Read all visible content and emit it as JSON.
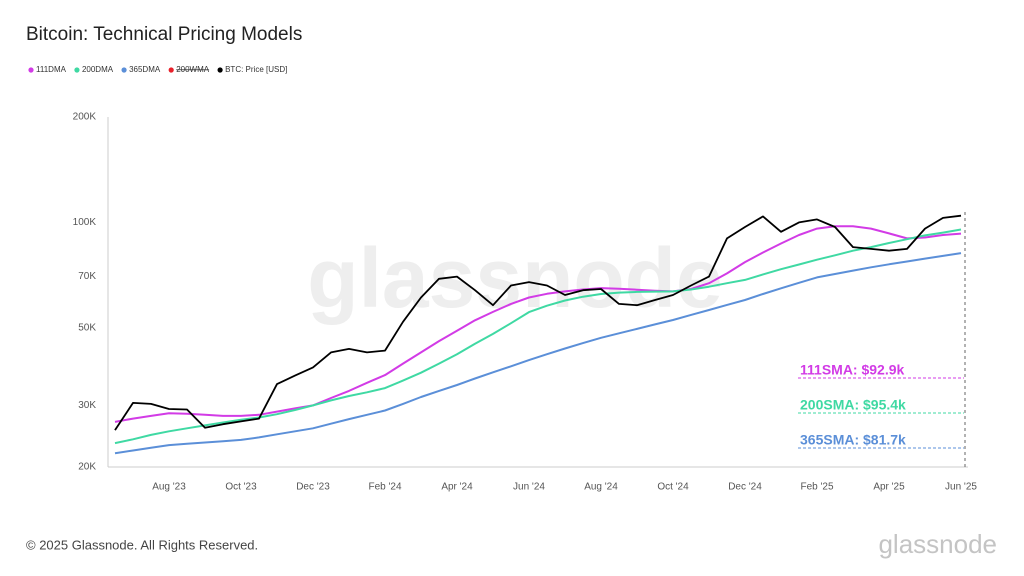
{
  "chart_data": {
    "type": "line",
    "title": "Bitcoin: Technical Pricing Models",
    "log_scale": true,
    "ylim": [
      20,
      200
    ],
    "yticks": [
      {
        "value": 20,
        "label": "20K"
      },
      {
        "value": 30,
        "label": "30K"
      },
      {
        "value": 50,
        "label": "50K"
      },
      {
        "value": 70,
        "label": "70K"
      },
      {
        "value": 100,
        "label": "100K"
      },
      {
        "value": 200,
        "label": "200K"
      }
    ],
    "categories": [
      null,
      null,
      null,
      "Aug '23",
      null,
      null,
      null,
      "Oct '23",
      null,
      null,
      null,
      "Dec '23",
      null,
      null,
      null,
      "Feb '24",
      null,
      null,
      null,
      "Apr '24",
      null,
      null,
      null,
      "Jun '24",
      null,
      null,
      null,
      "Aug '24",
      null,
      null,
      null,
      "Oct '24",
      null,
      null,
      null,
      "Dec '24",
      null,
      null,
      null,
      "Feb '25",
      null,
      null,
      null,
      "Apr '25",
      null,
      null,
      null,
      "Jun '25"
    ],
    "series": [
      {
        "name": "111DMA",
        "color": "#d23be6",
        "values": [
          26.9,
          27.5,
          28.0,
          28.5,
          28.4,
          28.2,
          28.0,
          28.0,
          28.2,
          28.8,
          29.4,
          30.0,
          31.5,
          33,
          34.8,
          36.6,
          39.5,
          42.5,
          45.8,
          49,
          52.5,
          55.5,
          58.5,
          61,
          62.5,
          63.5,
          64.3,
          64.9,
          64.6,
          64.2,
          63.8,
          63.5,
          64.5,
          67,
          71.5,
          77,
          82,
          87,
          92,
          96,
          97.5,
          97.5,
          96,
          93,
          90,
          90.5,
          92,
          92.9
        ]
      },
      {
        "name": "200DMA",
        "color": "#3fd9a3",
        "values": [
          23.4,
          24,
          24.7,
          25.3,
          25.8,
          26.3,
          26.8,
          27.3,
          27.7,
          28.3,
          29.1,
          30,
          31,
          31.9,
          32.7,
          33.6,
          35.3,
          37.2,
          39.5,
          42,
          45,
          48,
          51.5,
          55.4,
          57.8,
          59.8,
          61.3,
          62.4,
          63,
          63.3,
          63.4,
          63.5,
          64.3,
          65.5,
          67,
          68.5,
          71,
          73.5,
          75.8,
          78.2,
          80.5,
          83,
          85,
          87.3,
          89.5,
          91.8,
          93.5,
          95.4
        ]
      },
      {
        "name": "365DMA",
        "color": "#5b8fd8",
        "values": [
          21.9,
          22.3,
          22.7,
          23.1,
          23.3,
          23.5,
          23.7,
          23.9,
          24.3,
          24.8,
          25.3,
          25.8,
          26.6,
          27.4,
          28.2,
          29.0,
          30.3,
          31.7,
          33,
          34.3,
          35.8,
          37.3,
          38.8,
          40.4,
          42,
          43.6,
          45.2,
          46.8,
          48.2,
          49.6,
          51.1,
          52.6,
          54.4,
          56.2,
          58.1,
          60,
          62.4,
          64.8,
          67.2,
          69.6,
          71.2,
          72.8,
          74.4,
          75.9,
          77.3,
          78.8,
          80.2,
          81.7
        ]
      },
      {
        "name": "200WMA",
        "color": "#e8202a",
        "visible": false
      },
      {
        "name": "BTC: Price [USD]",
        "color": "#000000",
        "values": [
          25.5,
          30.5,
          30.3,
          29.3,
          29.2,
          25.9,
          26.5,
          27.0,
          27.5,
          34.5,
          36.5,
          38.5,
          42.5,
          43.5,
          42.5,
          43,
          52,
          61,
          69,
          70,
          64,
          58,
          66,
          67.5,
          66,
          62,
          64,
          64.5,
          58.5,
          58,
          60,
          62,
          66,
          70,
          90,
          97,
          104,
          94,
          100,
          102,
          97,
          85,
          84,
          83,
          84,
          96,
          103,
          104.5
        ]
      }
    ],
    "annotations": [
      {
        "text": "111SMA: $92.9k",
        "color": "#d23be6"
      },
      {
        "text": "200SMA: $95.4k",
        "color": "#3fd9a3"
      },
      {
        "text": "365SMA: $81.7k",
        "color": "#5b8fd8"
      }
    ],
    "watermark": "glassnode",
    "footer": "© 2025 Glassnode. All Rights Reserved.",
    "logo": "glassnode"
  }
}
